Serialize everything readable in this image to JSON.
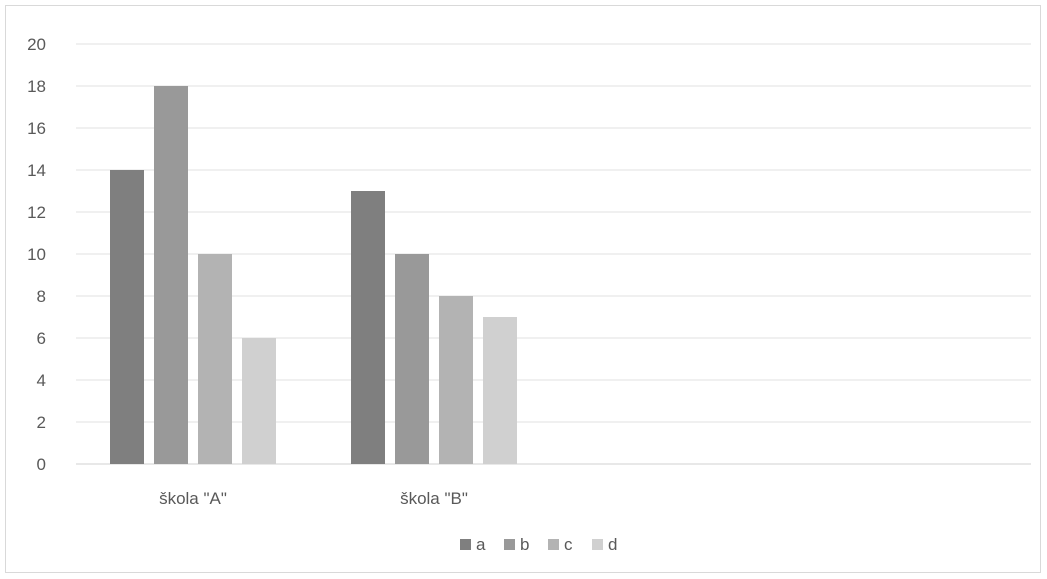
{
  "chart_data": {
    "type": "bar",
    "categories": [
      "škola \"A\"",
      "škola \"B\""
    ],
    "series": [
      {
        "name": "a",
        "values": [
          14,
          13
        ],
        "color": "#7f7f7f"
      },
      {
        "name": "b",
        "values": [
          18,
          10
        ],
        "color": "#999999"
      },
      {
        "name": "c",
        "values": [
          10,
          8
        ],
        "color": "#b3b3b3"
      },
      {
        "name": "d",
        "values": [
          6,
          7
        ],
        "color": "#d0d0d0"
      }
    ],
    "ylim": [
      0,
      20
    ],
    "yticks": [
      0,
      2,
      4,
      6,
      8,
      10,
      12,
      14,
      16,
      18,
      20
    ],
    "grid": true,
    "legend": "bottom-center",
    "title": "",
    "xlabel": "",
    "ylabel": ""
  }
}
